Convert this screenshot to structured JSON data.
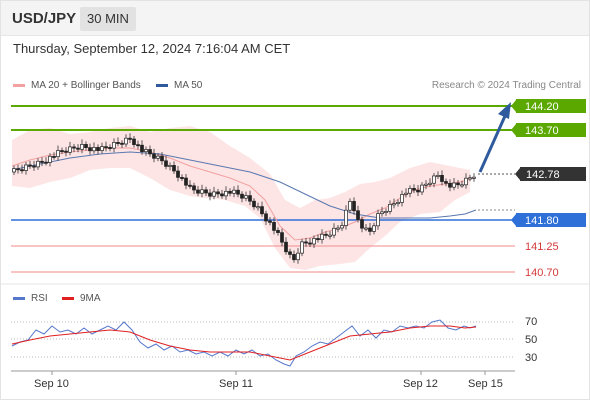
{
  "header": {
    "symbol": "USD/JPY",
    "timeframe": "30 MIN"
  },
  "datetime": "Thursday, September 12, 2024 7:16:04 AM CET",
  "legend": {
    "ma20": {
      "label": "MA 20 + Bollinger Bands",
      "color": "#f2a0a0"
    },
    "ma50": {
      "label": "MA 50",
      "color": "#2f5b9e"
    }
  },
  "copyright": "Research © 2024 Trading Central",
  "levels": [
    {
      "value": "144.20",
      "kind": "resistance",
      "color": "#5aa800"
    },
    {
      "value": "143.70",
      "kind": "resistance",
      "color": "#5aa800"
    },
    {
      "value": "142.78",
      "kind": "current",
      "color": "#333333"
    },
    {
      "value": "141.80",
      "kind": "pivot",
      "color": "#2f6fd8"
    },
    {
      "value": "141.25",
      "kind": "support",
      "color": "#d33a3a"
    },
    {
      "value": "140.70",
      "kind": "support",
      "color": "#d33a3a"
    }
  ],
  "rsi_legend": {
    "rsi": {
      "label": "RSI",
      "color": "#5577cc"
    },
    "ma9": {
      "label": "9MA",
      "color": "#e02020"
    }
  },
  "rsi_levels": [
    "70",
    "50",
    "30"
  ],
  "x_labels": [
    "Sep 10",
    "Sep 11",
    "Sep 12",
    "Sep 15"
  ]
}
